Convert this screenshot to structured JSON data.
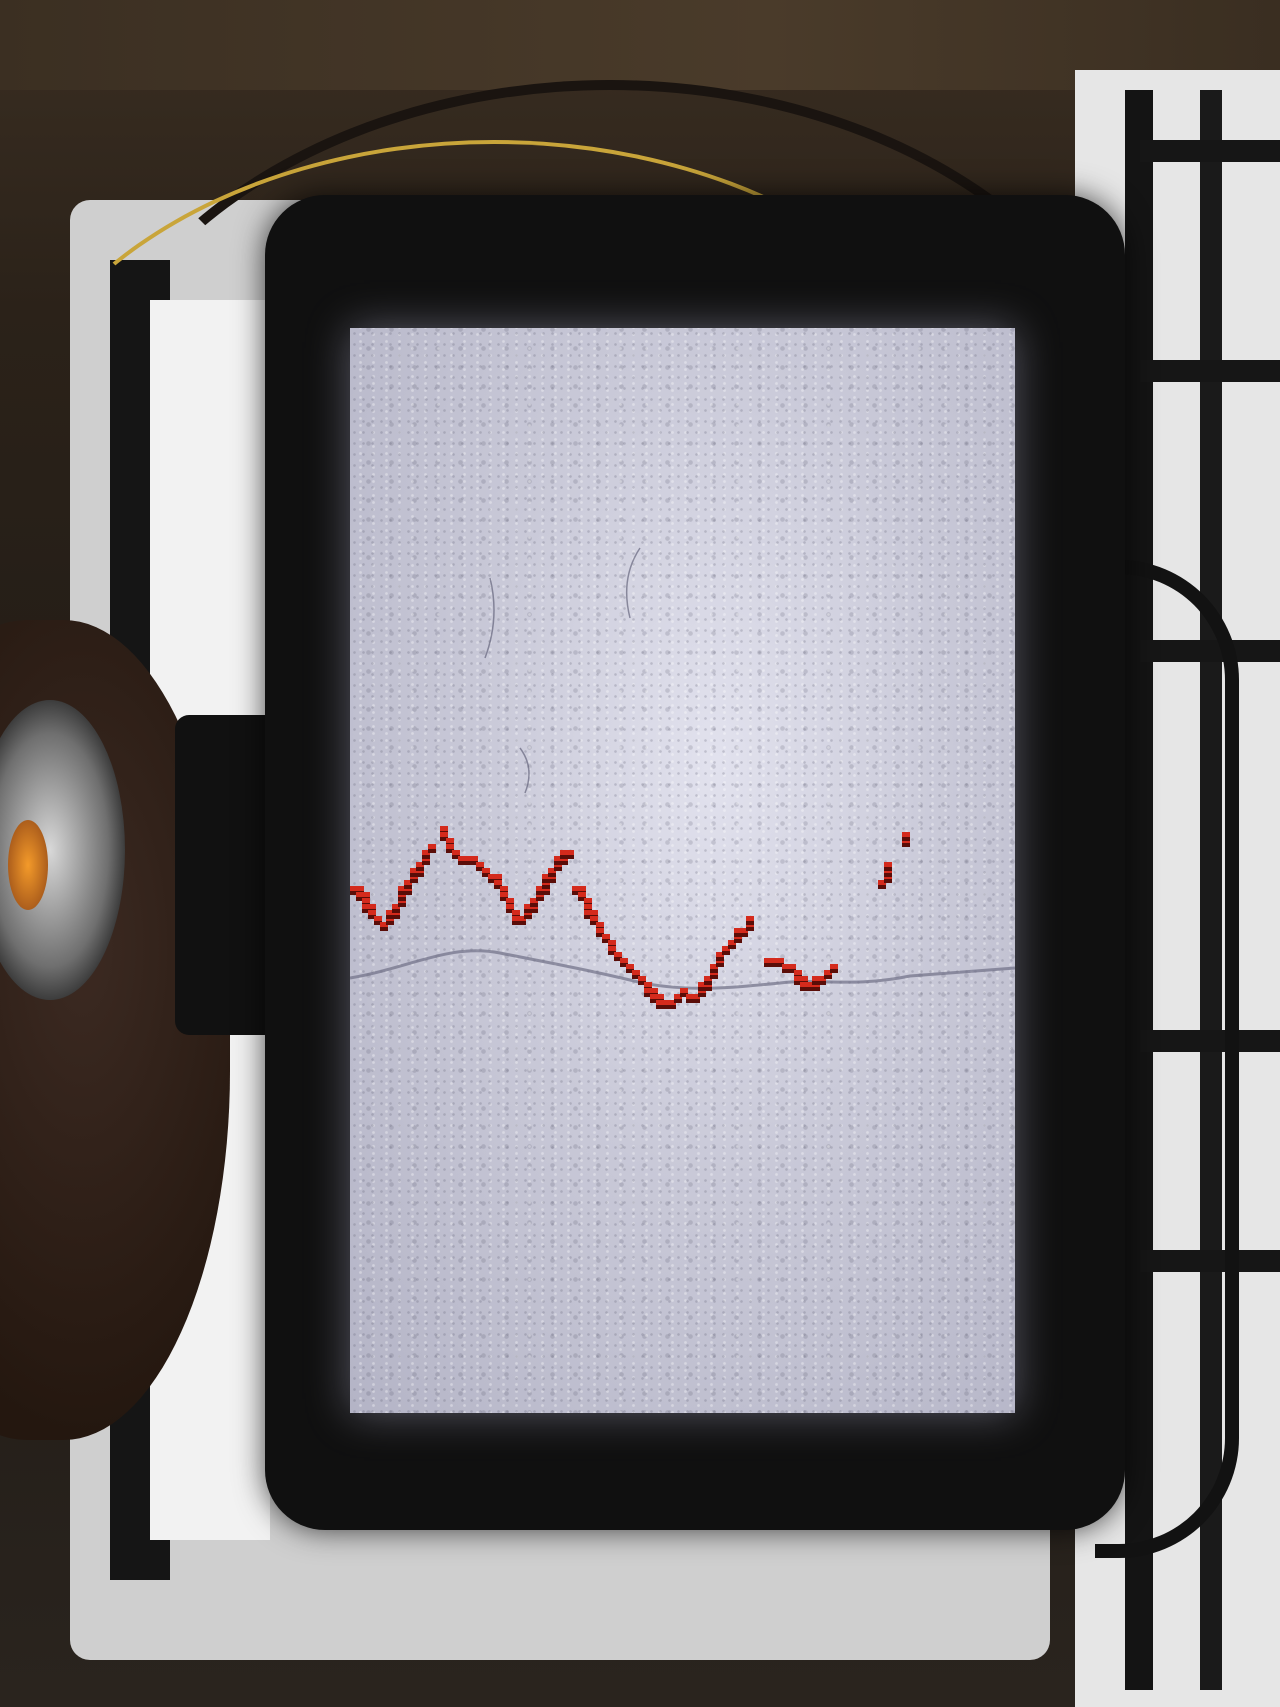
{
  "scene": {
    "subject": "handheld-inspection-camera-display",
    "screen_content": "crack-detection-overlay"
  },
  "colors": {
    "trace_red": "#d42a1c",
    "trace_dark": "#5a0d08",
    "surface_light": "#dcdce8",
    "device_body": "#101010"
  },
  "detection_trace": {
    "segments": [
      [
        [
          0,
          555
        ],
        [
          12,
          570
        ],
        [
          22,
          585
        ],
        [
          30,
          595
        ],
        [
          40,
          580
        ],
        [
          50,
          560
        ],
        [
          60,
          545
        ],
        [
          70,
          530
        ],
        [
          75,
          515
        ]
      ],
      [
        [
          90,
          500
        ],
        [
          100,
          520
        ],
        [
          112,
          528
        ],
        [
          124,
          532
        ],
        [
          134,
          540
        ],
        [
          146,
          550
        ],
        [
          156,
          575
        ],
        [
          166,
          590
        ],
        [
          176,
          578
        ],
        [
          184,
          565
        ],
        [
          194,
          548
        ],
        [
          204,
          530
        ],
        [
          214,
          520
        ]
      ],
      [
        [
          224,
          555
        ],
        [
          234,
          575
        ],
        [
          246,
          598
        ],
        [
          258,
          618
        ],
        [
          270,
          632
        ],
        [
          282,
          642
        ],
        [
          294,
          658
        ],
        [
          306,
          672
        ],
        [
          318,
          672
        ],
        [
          330,
          662
        ],
        [
          342,
          668
        ],
        [
          352,
          652
        ],
        [
          362,
          635
        ],
        [
          374,
          615
        ],
        [
          386,
          602
        ],
        [
          398,
          590
        ]
      ],
      [
        [
          414,
          630
        ],
        [
          428,
          632
        ],
        [
          442,
          642
        ],
        [
          456,
          656
        ],
        [
          468,
          648
        ],
        [
          480,
          635
        ]
      ],
      [
        [
          530,
          550
        ],
        [
          536,
          535
        ]
      ],
      [
        [
          550,
          510
        ],
        [
          554,
          505
        ]
      ]
    ]
  }
}
